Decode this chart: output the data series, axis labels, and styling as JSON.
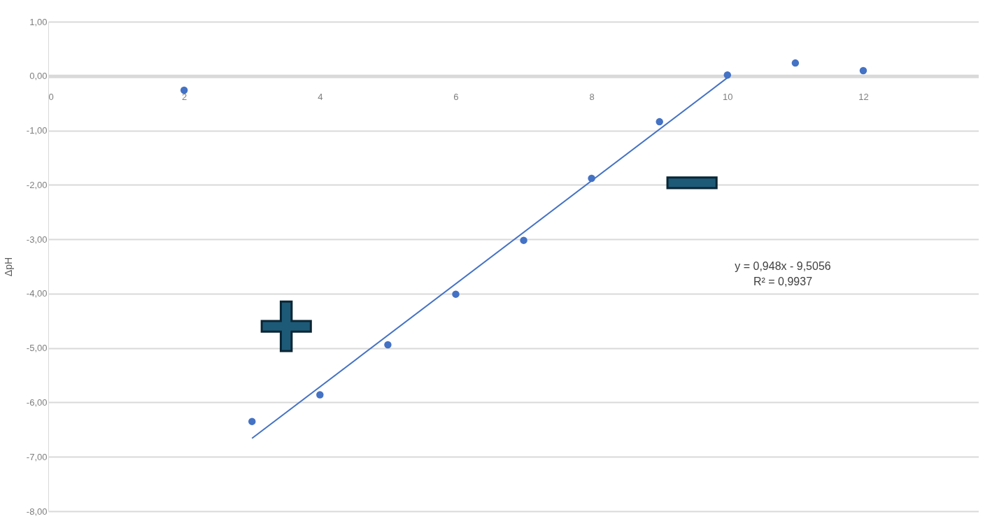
{
  "chart_data": {
    "type": "scatter",
    "ylabel": "ΔpH",
    "x": [
      2,
      3,
      4,
      5,
      6,
      7,
      8,
      9,
      10,
      11,
      12
    ],
    "series": [
      {
        "type": "scatter",
        "color": "#4472c4",
        "marker": "circle",
        "values": [
          -0.26,
          -6.35,
          -5.86,
          -4.94,
          -4.01,
          -3.02,
          -1.88,
          -0.84,
          0.02,
          0.24,
          0.1
        ]
      },
      {
        "type": "line",
        "marker": "none",
        "color": "#4472c4",
        "x": [
          3,
          10
        ],
        "values": [
          -6.66,
          -0.03
        ]
      }
    ],
    "xlim": [
      0,
      13.7
    ],
    "xticks": [
      0,
      2,
      4,
      6,
      8,
      10,
      12
    ],
    "ylim": [
      -8,
      1
    ],
    "yticks": [
      {
        "value": 1,
        "label": "1,00"
      },
      {
        "value": 0,
        "label": "0,00"
      },
      {
        "value": -1,
        "label": "-1,00"
      },
      {
        "value": -2,
        "label": "-2,00"
      },
      {
        "value": -3,
        "label": "-3,00"
      },
      {
        "value": -4,
        "label": "-4,00"
      },
      {
        "value": -5,
        "label": "-5,00"
      },
      {
        "value": -6,
        "label": "-6,00"
      },
      {
        "value": -7,
        "label": "-7,00"
      },
      {
        "value": -8,
        "label": "-8,00"
      }
    ],
    "annotations": [
      "+",
      "−",
      "y = 0,948x - 9,5056",
      "R² = 0,9937"
    ],
    "grid": "y",
    "legend": false
  }
}
